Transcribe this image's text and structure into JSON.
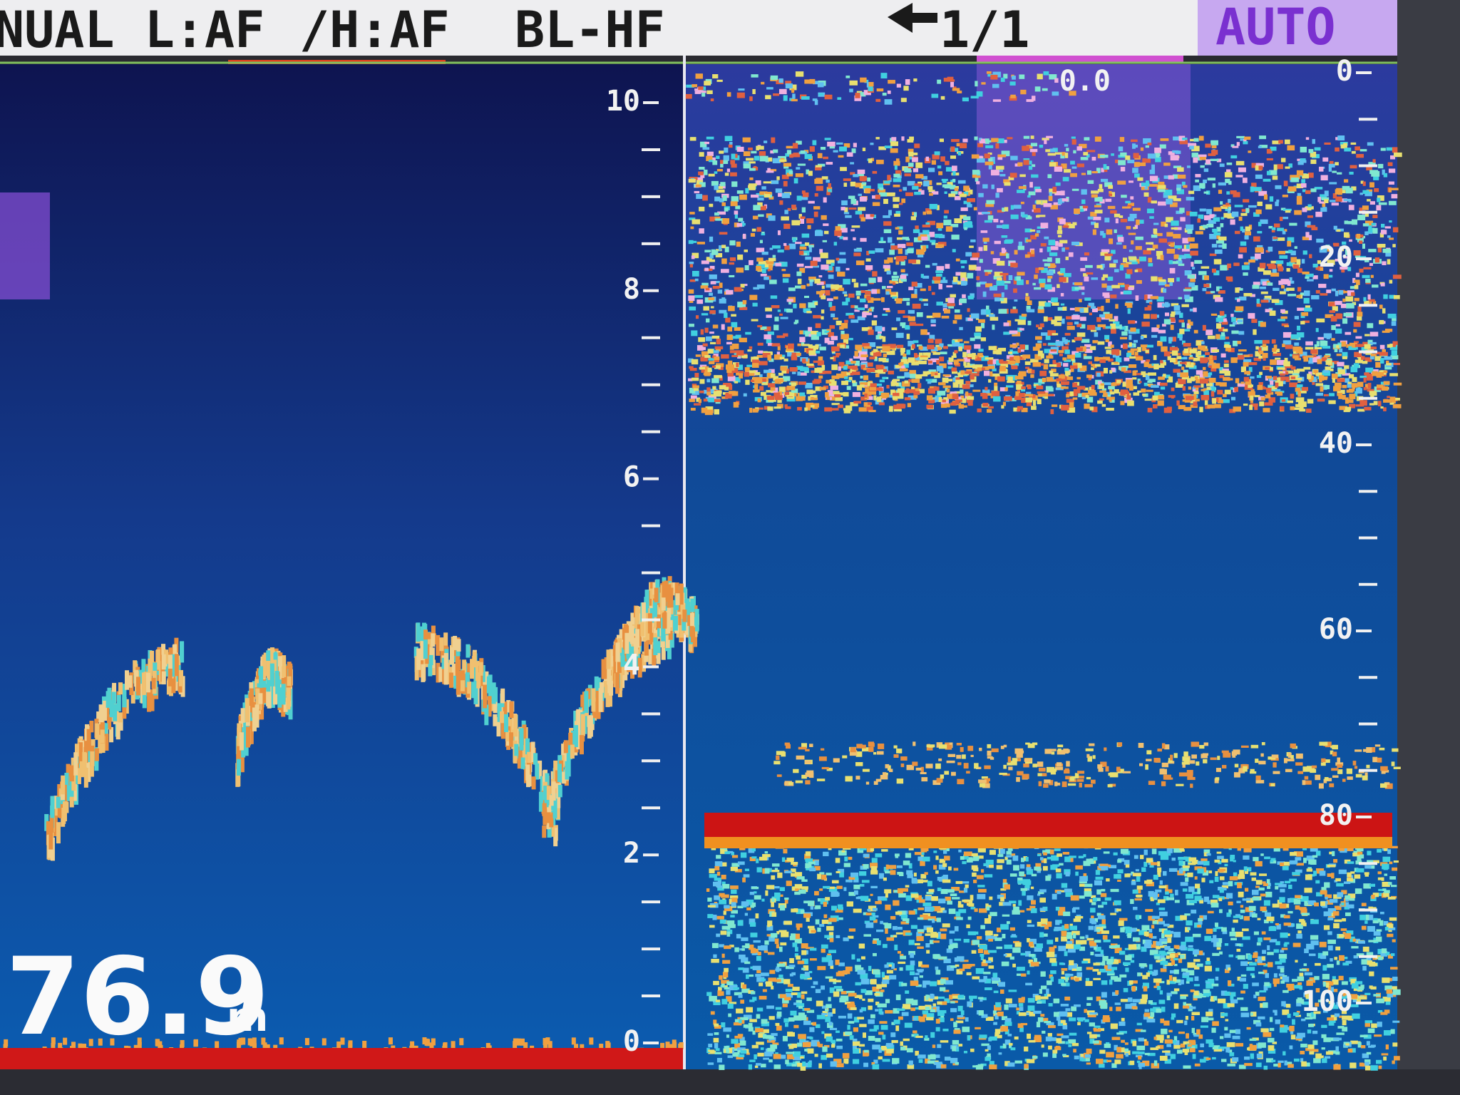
{
  "header": {
    "mode": "NUAL L:AF",
    "hf_mode": "/H:AF",
    "display": "BL-HF",
    "page": "1/1",
    "gain": "AUTO"
  },
  "left_scale": {
    "labels": [
      "10",
      "8",
      "6",
      "4",
      "2",
      "0"
    ]
  },
  "right_scale": {
    "shift": "0.0",
    "labels": [
      "0",
      "20",
      "40",
      "60",
      "80",
      "100"
    ]
  },
  "depth": {
    "value": "76.9",
    "unit": "m"
  }
}
